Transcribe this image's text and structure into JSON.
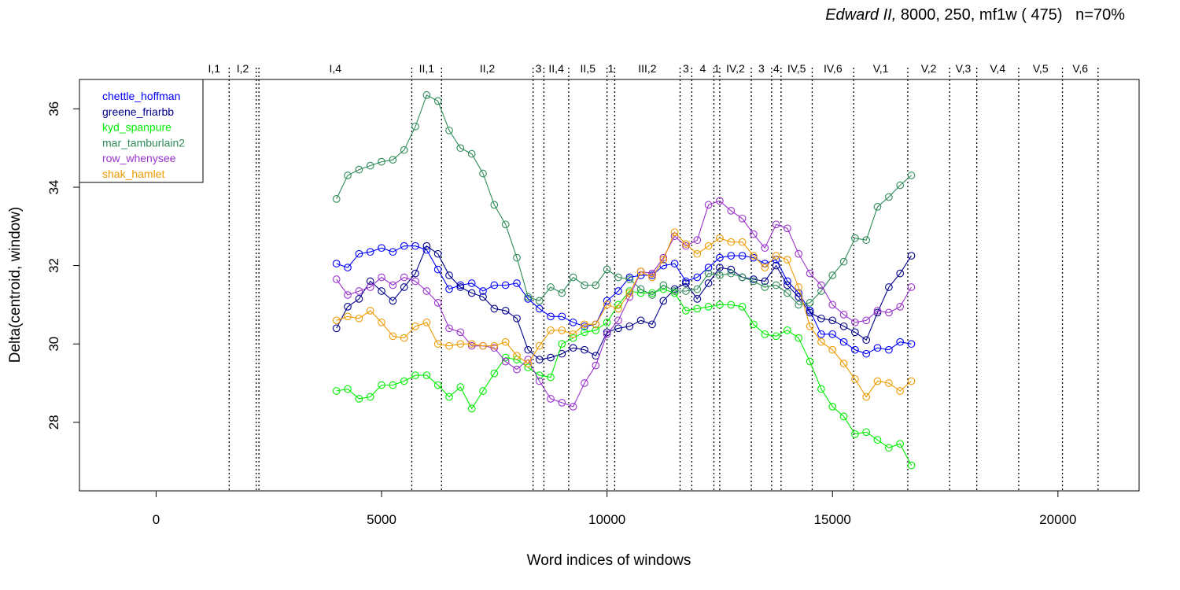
{
  "title": {
    "italic": "Edward II,",
    "rest": " 8000, 250, mf1w ( 475)   n=70%"
  },
  "chart_data": {
    "type": "line",
    "title": "Edward II, 8000, 250, mf1w ( 475)   n=70%",
    "xlabel": "Word indices of windows",
    "ylabel": "Delta(centroid, window)",
    "xlim": [
      -1700,
      21800
    ],
    "ylim": [
      26.25,
      36.75
    ],
    "xticks": [
      0,
      5000,
      10000,
      15000,
      20000
    ],
    "xtick_labels": [
      "0",
      "5000",
      "10000",
      "15000",
      "20000"
    ],
    "yticks": [
      28,
      30,
      32,
      34,
      36
    ],
    "ytick_labels": [
      "28",
      "30",
      "32",
      "34",
      "36"
    ],
    "grid": false,
    "legend_position": "top-left",
    "scene_markers": [
      {
        "x": 1620,
        "label": "I,1"
      },
      {
        "x": 2220,
        "label": "I,2"
      },
      {
        "x": 2280,
        "label": ""
      },
      {
        "x": 5670,
        "label": "I,4"
      },
      {
        "x": 6330,
        "label": "II,1"
      },
      {
        "x": 8360,
        "label": "II,2"
      },
      {
        "x": 8600,
        "label": "3"
      },
      {
        "x": 9150,
        "label": "II,4"
      },
      {
        "x": 10000,
        "label": "II,5"
      },
      {
        "x": 10170,
        "label": "1"
      },
      {
        "x": 11620,
        "label": "III,2"
      },
      {
        "x": 11880,
        "label": "3"
      },
      {
        "x": 12370,
        "label": "4"
      },
      {
        "x": 12500,
        "label": "1"
      },
      {
        "x": 13200,
        "label": "IV,2"
      },
      {
        "x": 13650,
        "label": "3"
      },
      {
        "x": 13860,
        "label": "4"
      },
      {
        "x": 14550,
        "label": "IV,5"
      },
      {
        "x": 15470,
        "label": "IV,6"
      },
      {
        "x": 16670,
        "label": "V,1"
      },
      {
        "x": 17600,
        "label": "V,2"
      },
      {
        "x": 18200,
        "label": "V,3"
      },
      {
        "x": 19130,
        "label": "V,4"
      },
      {
        "x": 20100,
        "label": "V,5"
      },
      {
        "x": 20890,
        "label": "V,6"
      }
    ],
    "x": [
      4000,
      4250,
      4500,
      4750,
      5000,
      5250,
      5500,
      5750,
      6000,
      6250,
      6500,
      6750,
      7000,
      7250,
      7500,
      7750,
      8000,
      8250,
      8500,
      8750,
      9000,
      9250,
      9500,
      9750,
      10000,
      10250,
      10500,
      10750,
      11000,
      11250,
      11500,
      11750,
      12000,
      12250,
      12500,
      12750,
      13000,
      13250,
      13500,
      13750,
      14000,
      14250,
      14500,
      14750,
      15000,
      15250,
      15500,
      15750,
      16000,
      16250,
      16500,
      16750
    ],
    "series": [
      {
        "name": "chettle_hoffman",
        "color": "#0000ff",
        "values": [
          32.05,
          31.95,
          32.3,
          32.35,
          32.45,
          32.35,
          32.5,
          32.5,
          32.4,
          31.9,
          31.4,
          31.5,
          31.55,
          31.35,
          31.5,
          31.5,
          31.55,
          31.15,
          30.9,
          30.7,
          30.7,
          30.55,
          30.45,
          30.5,
          31.1,
          31.35,
          31.7,
          31.75,
          31.75,
          32.0,
          32.05,
          31.6,
          31.7,
          31.95,
          32.2,
          32.25,
          32.25,
          32.2,
          32.05,
          32.15,
          31.6,
          31.3,
          30.85,
          30.25,
          30.25,
          30.05,
          29.85,
          29.75,
          29.9,
          29.85,
          30.05,
          30.0
        ]
      },
      {
        "name": "greene_friarbb",
        "color": "#00008b",
        "values": [
          30.4,
          30.95,
          31.15,
          31.6,
          31.35,
          31.1,
          31.45,
          31.8,
          32.5,
          32.3,
          31.75,
          31.45,
          31.3,
          31.2,
          30.9,
          30.85,
          30.65,
          29.85,
          29.6,
          29.65,
          29.75,
          29.9,
          29.85,
          29.7,
          30.3,
          30.4,
          30.45,
          30.6,
          30.5,
          31.1,
          31.4,
          31.55,
          31.15,
          31.55,
          31.95,
          31.9,
          31.7,
          31.65,
          31.6,
          32.0,
          31.5,
          31.2,
          30.8,
          30.65,
          30.6,
          30.45,
          30.3,
          30.1,
          30.8,
          31.45,
          31.8,
          32.25
        ]
      },
      {
        "name": "kyd_spanpure",
        "color": "#00ee00",
        "values": [
          28.8,
          28.85,
          28.6,
          28.65,
          28.95,
          28.95,
          29.05,
          29.2,
          29.2,
          28.95,
          28.65,
          28.9,
          28.35,
          28.8,
          29.25,
          29.65,
          29.6,
          29.4,
          29.2,
          29.15,
          30.0,
          30.15,
          30.3,
          30.35,
          30.55,
          31.0,
          31.35,
          31.3,
          31.3,
          31.4,
          31.3,
          30.85,
          30.9,
          30.95,
          31.0,
          31.0,
          30.95,
          30.5,
          30.25,
          30.2,
          30.35,
          30.15,
          29.55,
          28.85,
          28.4,
          28.15,
          27.7,
          27.75,
          27.55,
          27.35,
          27.45,
          26.9
        ]
      },
      {
        "name": "mar_tamburlain2",
        "color": "#2e8b57",
        "values": [
          33.7,
          34.3,
          34.45,
          34.55,
          34.65,
          34.7,
          34.95,
          35.55,
          36.35,
          36.2,
          35.45,
          35.0,
          34.85,
          34.35,
          33.55,
          33.05,
          32.2,
          31.2,
          31.1,
          31.45,
          31.3,
          31.7,
          31.5,
          31.5,
          31.9,
          31.7,
          31.65,
          31.4,
          31.25,
          31.5,
          31.35,
          31.35,
          31.4,
          31.8,
          31.75,
          31.8,
          31.7,
          31.6,
          31.45,
          31.5,
          31.3,
          31.0,
          31.05,
          31.35,
          31.75,
          32.1,
          32.7,
          32.65,
          33.5,
          33.75,
          34.05,
          34.3
        ]
      },
      {
        "name": "row_whenysee",
        "color": "#9a32cd",
        "values": [
          31.65,
          31.25,
          31.35,
          31.45,
          31.7,
          31.5,
          31.7,
          31.6,
          31.35,
          31.05,
          30.4,
          30.3,
          29.95,
          29.95,
          29.9,
          29.55,
          29.35,
          29.6,
          29.05,
          28.6,
          28.5,
          28.4,
          29.0,
          29.45,
          30.25,
          30.6,
          31.2,
          31.85,
          31.8,
          32.2,
          32.75,
          32.5,
          32.65,
          33.55,
          33.65,
          33.4,
          33.2,
          32.8,
          32.45,
          33.05,
          32.95,
          32.3,
          31.8,
          31.5,
          31.0,
          30.75,
          30.55,
          30.6,
          30.85,
          30.8,
          30.95,
          31.45
        ]
      },
      {
        "name": "shak_hamlet",
        "color": "#ee9a00",
        "values": [
          30.6,
          30.7,
          30.65,
          30.85,
          30.55,
          30.2,
          30.15,
          30.45,
          30.55,
          30.0,
          29.95,
          30.0,
          30.0,
          29.95,
          29.95,
          30.05,
          29.7,
          29.5,
          29.95,
          30.35,
          30.35,
          30.25,
          30.5,
          30.5,
          31.0,
          30.9,
          31.3,
          31.85,
          31.7,
          32.15,
          32.85,
          32.55,
          32.3,
          32.5,
          32.7,
          32.6,
          32.6,
          32.25,
          31.95,
          32.25,
          32.15,
          31.45,
          30.45,
          30.05,
          29.85,
          29.5,
          29.1,
          28.65,
          29.05,
          29.0,
          28.8,
          29.05
        ]
      }
    ]
  }
}
